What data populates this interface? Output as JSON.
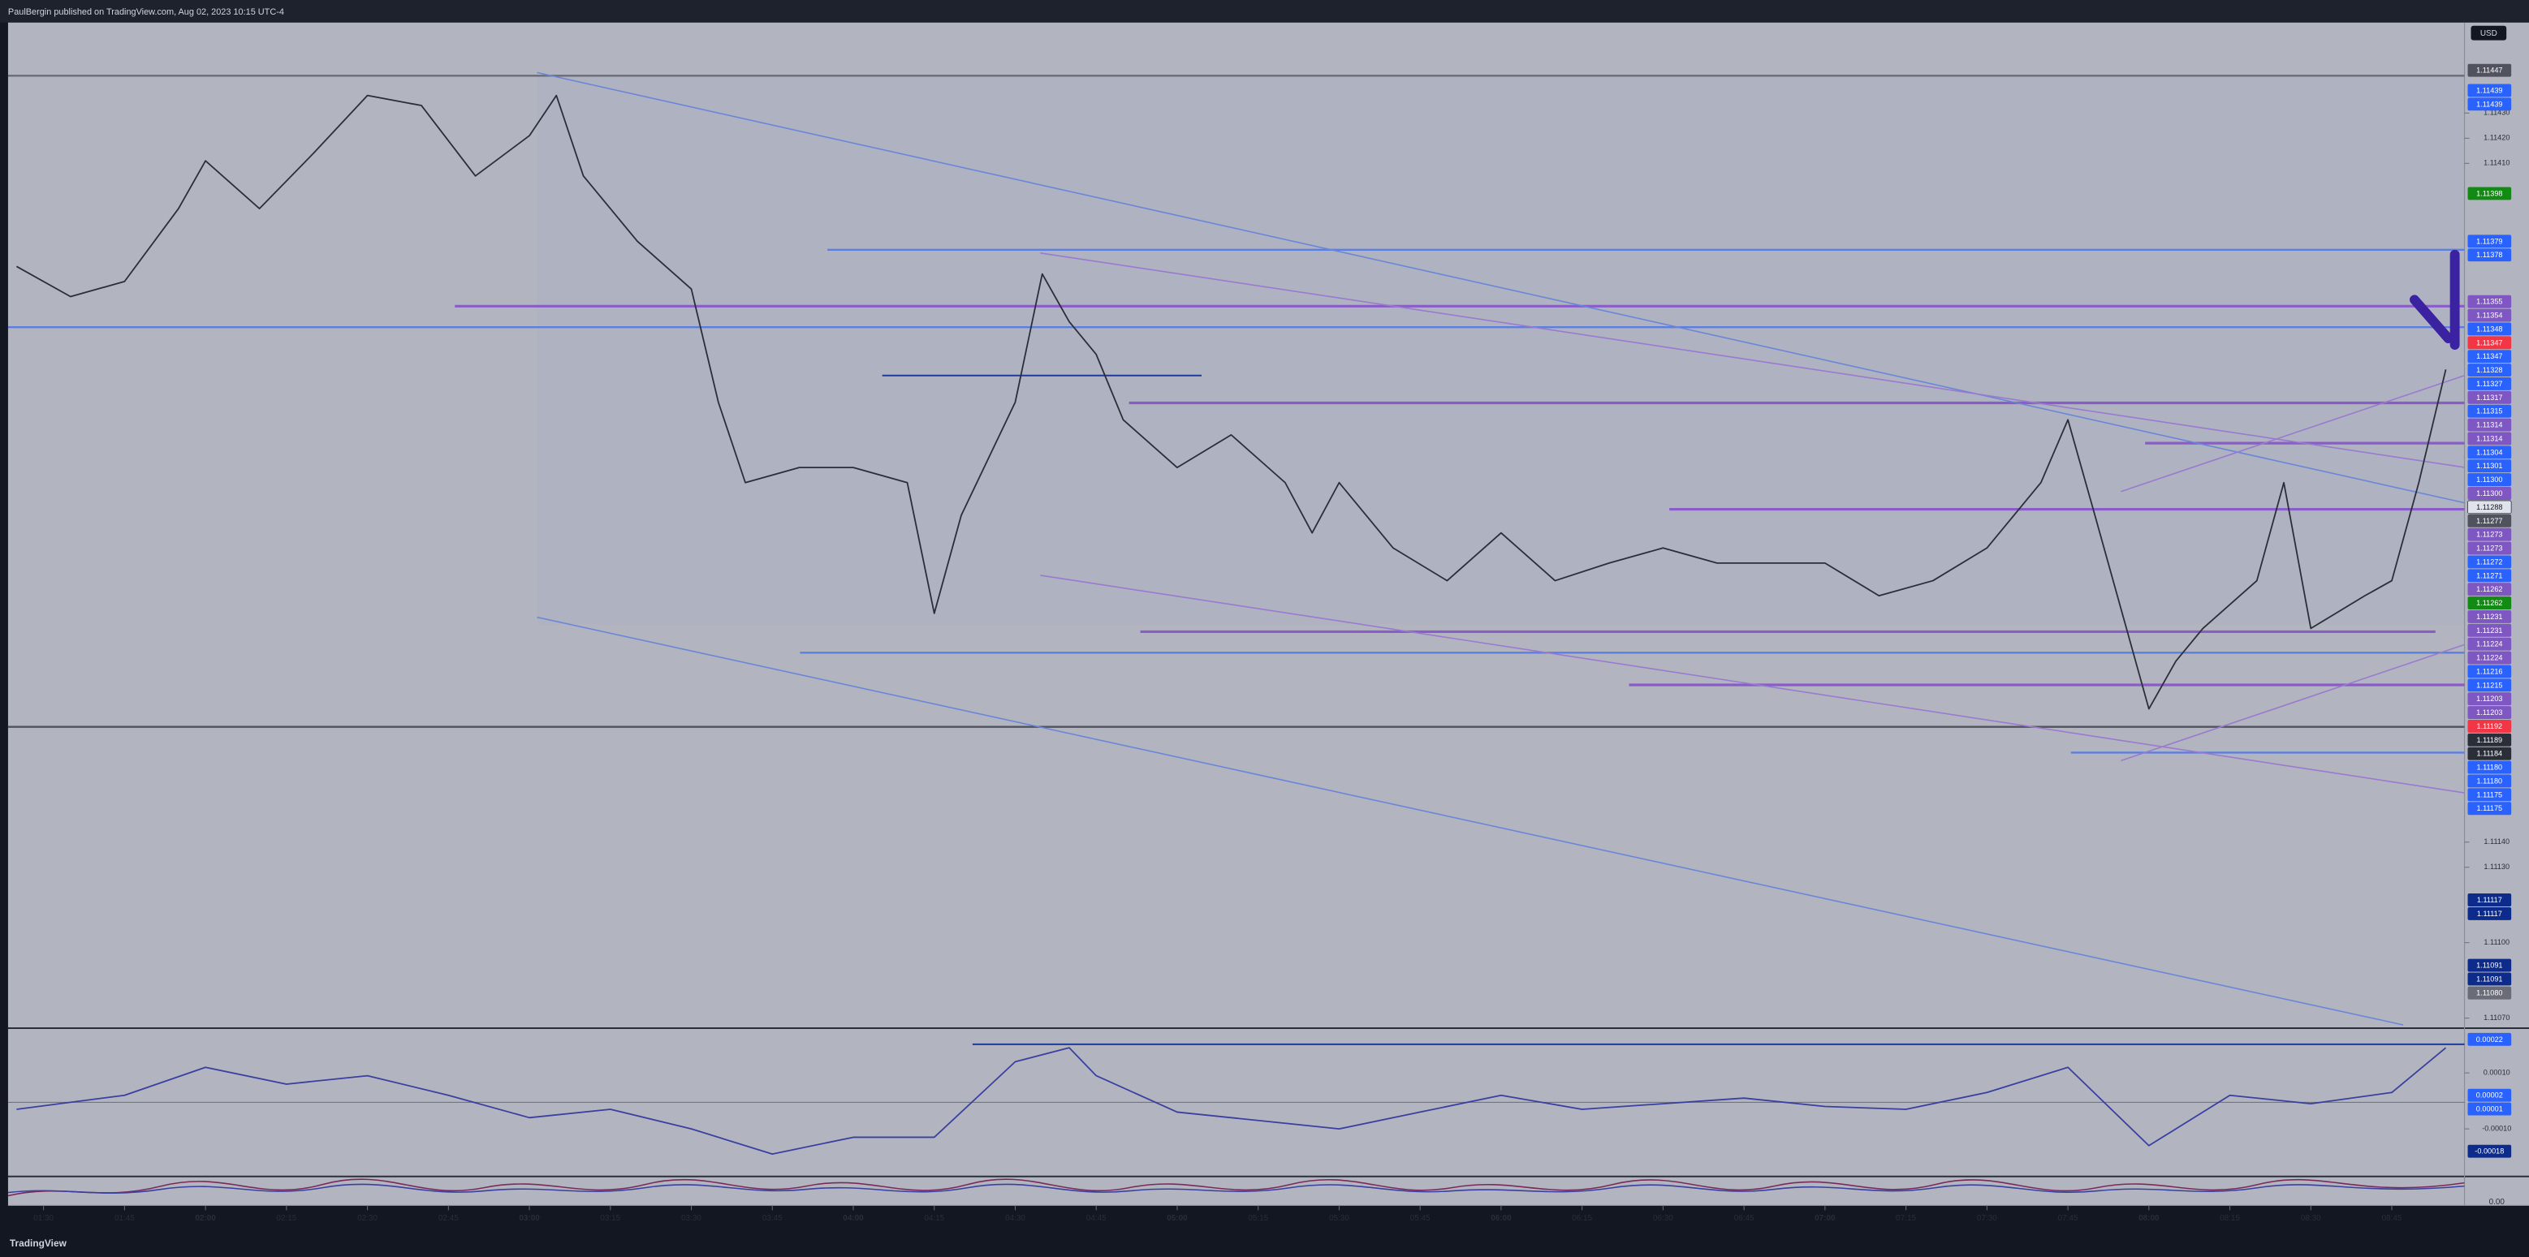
{
  "header": {
    "publisher": "PaulBergin published on TradingView.com, Aug 02, 2023 10:15 UTC-4"
  },
  "currency": "USD",
  "footer": {
    "brand": "TradingView"
  },
  "pane3_label": "0.00",
  "chart_data": [
    {
      "type": "line",
      "color": "#2a2e39",
      "x": [
        "01:25",
        "01:35",
        "01:45",
        "01:55",
        "02:00",
        "02:10",
        "02:20",
        "02:30",
        "02:40",
        "02:50",
        "03:00",
        "03:05",
        "03:10",
        "03:20",
        "03:30",
        "03:35",
        "03:40",
        "03:50",
        "04:00",
        "04:10",
        "04:15",
        "04:20",
        "04:30",
        "04:35",
        "04:40",
        "04:45",
        "04:50",
        "05:00",
        "05:10",
        "05:20",
        "05:25",
        "05:30",
        "05:40",
        "05:50",
        "06:00",
        "06:10",
        "06:20",
        "06:30",
        "06:40",
        "06:50",
        "07:00",
        "07:10",
        "07:20",
        "07:30",
        "07:40",
        "07:45",
        "07:50",
        "08:00",
        "08:05",
        "08:10",
        "08:20",
        "08:25",
        "08:30",
        "08:40",
        "08:45",
        "08:50",
        "08:55"
      ],
      "values": [
        1.11369,
        1.11357,
        1.11363,
        1.11392,
        1.11411,
        1.11392,
        1.11414,
        1.11437,
        1.11433,
        1.11405,
        1.11421,
        1.11437,
        1.11405,
        1.11379,
        1.1136,
        1.11315,
        1.11283,
        1.11289,
        1.11289,
        1.11283,
        1.11231,
        1.1127,
        1.11315,
        1.11366,
        1.11347,
        1.11334,
        1.11308,
        1.11289,
        1.11302,
        1.11283,
        1.11263,
        1.11283,
        1.11257,
        1.11244,
        1.11263,
        1.11244,
        1.11251,
        1.11257,
        1.11251,
        1.11251,
        1.11251,
        1.11238,
        1.11244,
        1.11257,
        1.11283,
        1.11308,
        1.1127,
        1.11193,
        1.11212,
        1.11225,
        1.11244,
        1.11283,
        1.11225,
        1.11238,
        1.11244,
        1.11283,
        1.11328
      ],
      "ylim": [
        1.11066,
        1.11466
      ],
      "yticks": [
        {
          "value": 1.1143,
          "label": "1.11430"
        },
        {
          "value": 1.1142,
          "label": "1.11420"
        },
        {
          "value": 1.1141,
          "label": "1.11410"
        },
        {
          "value": 1.1114,
          "label": "1.11140"
        },
        {
          "value": 1.1113,
          "label": "1.11130"
        },
        {
          "value": 1.111,
          "label": "1.11100"
        },
        {
          "value": 1.1107,
          "label": "1.11070"
        }
      ],
      "xticks": [
        "01:30",
        "01:45",
        "02:00",
        "02:15",
        "02:30",
        "02:45",
        "03:00",
        "03:15",
        "03:30",
        "03:45",
        "04:00",
        "04:15",
        "04:30",
        "04:45",
        "05:00",
        "05:15",
        "05:30",
        "05:45",
        "06:00",
        "06:15",
        "06:30",
        "06:45",
        "07:00",
        "07:15",
        "07:30",
        "07:45",
        "08:00",
        "08:15",
        "08:30",
        "08:45"
      ],
      "price_labels": [
        {
          "value": 1.11447,
          "label": "1.11447",
          "color": "#50535e"
        },
        {
          "value": 1.11439,
          "label": "1.11439",
          "color": "#2962ff"
        },
        {
          "value": 1.11439,
          "label": "1.11439",
          "color": "#2962ff"
        },
        {
          "value": 1.11398,
          "label": "1.11398",
          "color": "#138a13"
        },
        {
          "value": 1.11379,
          "label": "1.11379",
          "color": "#2962ff"
        },
        {
          "value": 1.11378,
          "label": "1.11378",
          "color": "#2962ff"
        },
        {
          "value": 1.11355,
          "label": "1.11355",
          "color": "#7e57c2"
        },
        {
          "value": 1.11354,
          "label": "1.11354",
          "color": "#7e57c2"
        },
        {
          "value": 1.11348,
          "label": "1.11348",
          "color": "#2962ff"
        },
        {
          "value": 1.11347,
          "label": "1.11347",
          "color": "#f23645"
        },
        {
          "value": 1.11347,
          "label": "1.11347",
          "color": "#2962ff"
        },
        {
          "value": 1.11328,
          "label": "1.11328",
          "color": "#2962ff"
        },
        {
          "value": 1.11327,
          "label": "1.11327",
          "color": "#2962ff"
        },
        {
          "value": 1.11317,
          "label": "1.11317",
          "color": "#7e57c2"
        },
        {
          "value": 1.11315,
          "label": "1.11315",
          "color": "#2962ff"
        },
        {
          "value": 1.11314,
          "label": "1.11314",
          "color": "#7e57c2"
        },
        {
          "value": 1.11314,
          "label": "1.11314",
          "color": "#7e57c2"
        },
        {
          "value": 1.11304,
          "label": "1.11304",
          "color": "#2962ff"
        },
        {
          "value": 1.11301,
          "label": "1.11301",
          "color": "#2962ff"
        },
        {
          "value": 1.113,
          "label": "1.11300",
          "color": "#2962ff"
        },
        {
          "value": 1.113,
          "label": "1.11300",
          "color": "#7e57c2"
        },
        {
          "value": 1.11288,
          "label": "1.11288",
          "color": "#e0e3eb"
        },
        {
          "value": 1.11277,
          "label": "1.11277",
          "color": "#50535e"
        },
        {
          "value": 1.11273,
          "label": "1.11273",
          "color": "#7e57c2"
        },
        {
          "value": 1.11273,
          "label": "1.11273",
          "color": "#7e57c2"
        },
        {
          "value": 1.11272,
          "label": "1.11272",
          "color": "#2962ff"
        },
        {
          "value": 1.11271,
          "label": "1.11271",
          "color": "#2962ff"
        },
        {
          "value": 1.11262,
          "label": "1.11262",
          "color": "#7e57c2"
        },
        {
          "value": 1.11262,
          "label": "1.11262",
          "color": "#138a13"
        },
        {
          "value": 1.11231,
          "label": "1.11231",
          "color": "#7e57c2"
        },
        {
          "value": 1.11231,
          "label": "1.11231",
          "color": "#7e57c2"
        },
        {
          "value": 1.11224,
          "label": "1.11224",
          "color": "#7e57c2"
        },
        {
          "value": 1.11224,
          "label": "1.11224",
          "color": "#7e57c2"
        },
        {
          "value": 1.11216,
          "label": "1.11216",
          "color": "#2962ff"
        },
        {
          "value": 1.11215,
          "label": "1.11215",
          "color": "#2962ff"
        },
        {
          "value": 1.11203,
          "label": "1.11203",
          "color": "#7e57c2"
        },
        {
          "value": 1.11203,
          "label": "1.11203",
          "color": "#7e57c2"
        },
        {
          "value": 1.11192,
          "label": "1.11192",
          "color": "#f23645"
        },
        {
          "value": 1.11189,
          "label": "1.11189",
          "color": "#2a2e39"
        },
        {
          "value": 1.11184,
          "label": "1.11184",
          "color": "#2a2e39"
        },
        {
          "value": 1.1118,
          "label": "1.11180",
          "color": "#2962ff"
        },
        {
          "value": 1.1118,
          "label": "1.11180",
          "color": "#2962ff"
        },
        {
          "value": 1.11175,
          "label": "1.11175",
          "color": "#2962ff"
        },
        {
          "value": 1.11175,
          "label": "1.11175",
          "color": "#2962ff"
        },
        {
          "value": 1.11117,
          "label": "1.11117",
          "color": "#0d2b8a"
        },
        {
          "value": 1.11117,
          "label": "1.11117",
          "color": "#0d2b8a"
        },
        {
          "value": 1.11091,
          "label": "1.11091",
          "color": "#0d2b8a"
        },
        {
          "value": 1.11091,
          "label": "1.11091",
          "color": "#0d2b8a"
        },
        {
          "value": 1.1108,
          "label": "1.11080",
          "color": "#6a6d78"
        }
      ]
    },
    {
      "type": "line",
      "color": "#3a3fa0",
      "x": [
        "01:25",
        "01:45",
        "02:00",
        "02:15",
        "02:30",
        "02:45",
        "03:00",
        "03:15",
        "03:30",
        "03:45",
        "04:00",
        "04:15",
        "04:30",
        "04:40",
        "04:45",
        "05:00",
        "05:15",
        "05:30",
        "05:45",
        "06:00",
        "06:15",
        "06:30",
        "06:45",
        "07:00",
        "07:15",
        "07:30",
        "07:45",
        "08:00",
        "08:15",
        "08:30",
        "08:45",
        "08:55"
      ],
      "values": [
        -3e-05,
        2e-05,
        0.00012,
        6e-05,
        9e-05,
        2e-05,
        -6e-05,
        -3e-05,
        -0.0001,
        -0.00019,
        -0.00013,
        -0.00013,
        0.00014,
        0.00019,
        9e-05,
        -4e-05,
        -7e-05,
        -0.0001,
        -4e-05,
        2e-05,
        -3e-05,
        -1e-05,
        1e-05,
        -2e-05,
        -3e-05,
        3e-05,
        0.00012,
        -0.00016,
        2e-05,
        -1e-05,
        3e-05,
        0.00019
      ],
      "ylim": [
        -0.00027,
        0.00026
      ],
      "yticks": [
        {
          "value": 0.0001,
          "label": "0.00010"
        },
        {
          "value": -0.0001,
          "label": "-0.00010"
        }
      ],
      "price_labels": [
        {
          "value": 0.00022,
          "label": "0.00022",
          "color": "#2962ff"
        },
        {
          "value": 2e-05,
          "label": "0.00002",
          "color": "#2962ff"
        },
        {
          "value": 1e-05,
          "label": "0.00001",
          "color": "#2962ff"
        },
        {
          "value": -0.00018,
          "label": "-0.00018",
          "color": "#0d2b8a"
        }
      ]
    }
  ]
}
